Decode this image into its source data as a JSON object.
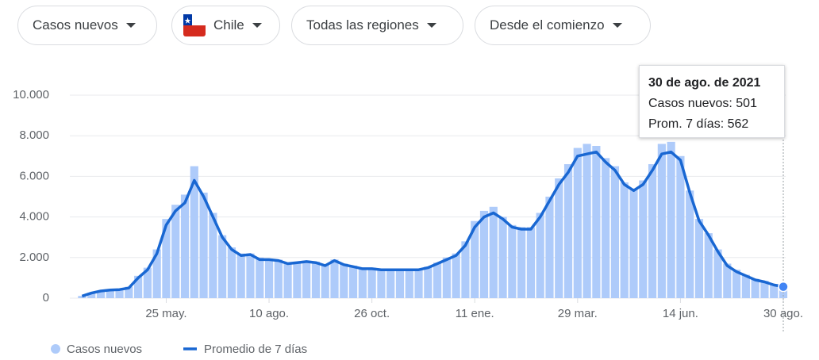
{
  "controls": {
    "metric": "Casos nuevos",
    "country": "Chile",
    "region": "Todas las regiones",
    "period": "Desde el comienzo"
  },
  "tooltip": {
    "title": "30 de ago. de 2021",
    "lines": [
      "Casos nuevos: 501",
      "Prom. 7 días: 562"
    ]
  },
  "chart_data": {
    "type": "bar-line",
    "x": [
      5,
      12,
      19,
      26,
      33,
      40,
      47,
      54,
      61,
      68,
      75,
      82,
      89,
      96,
      103,
      110,
      117,
      124,
      131,
      138,
      145,
      152,
      159,
      166,
      173,
      180,
      187,
      194,
      201,
      208,
      215,
      222,
      229,
      236,
      243,
      250,
      257,
      264,
      271,
      278,
      285,
      292,
      299,
      306,
      313,
      320,
      327,
      334,
      341,
      348,
      355,
      362,
      369,
      376,
      383,
      390,
      397,
      404,
      411,
      418,
      425,
      432,
      439,
      446,
      453,
      460,
      467,
      474,
      481,
      488,
      495,
      502,
      509,
      516,
      523,
      530
    ],
    "series": [
      {
        "name": "Casos nuevos",
        "color": "#aecbfa",
        "values": [
          110,
          260,
          370,
          420,
          450,
          560,
          1100,
          1500,
          2400,
          3900,
          4600,
          5100,
          6500,
          5200,
          4200,
          3100,
          2500,
          2200,
          2200,
          2000,
          1950,
          1900,
          1750,
          1800,
          1850,
          1800,
          1650,
          1900,
          1700,
          1600,
          1500,
          1500,
          1450,
          1450,
          1450,
          1450,
          1400,
          1550,
          1750,
          2000,
          2200,
          2800,
          3800,
          4300,
          4500,
          4000,
          3600,
          3500,
          3500,
          4200,
          5000,
          5900,
          6600,
          7400,
          7600,
          7500,
          6900,
          6500,
          5700,
          5400,
          5800,
          6600,
          7600,
          7700,
          7000,
          5300,
          3900,
          3200,
          2400,
          1700,
          1400,
          1150,
          950,
          850,
          700,
          501
        ]
      },
      {
        "name": "Promedio de 7 días",
        "color": "#1967d2",
        "values": [
          100,
          250,
          350,
          400,
          420,
          500,
          1000,
          1400,
          2200,
          3600,
          4300,
          4700,
          5800,
          5000,
          4000,
          3000,
          2400,
          2100,
          2150,
          1900,
          1900,
          1850,
          1700,
          1750,
          1800,
          1750,
          1600,
          1850,
          1650,
          1550,
          1450,
          1450,
          1400,
          1400,
          1400,
          1400,
          1400,
          1500,
          1700,
          1900,
          2100,
          2600,
          3500,
          4000,
          4200,
          3900,
          3500,
          3400,
          3400,
          4000,
          4800,
          5600,
          6200,
          7000,
          7100,
          7200,
          6700,
          6300,
          5600,
          5300,
          5600,
          6300,
          7100,
          7200,
          6800,
          5200,
          3800,
          3100,
          2300,
          1600,
          1300,
          1100,
          900,
          800,
          650,
          562
        ]
      }
    ],
    "xlim": [
      0,
      530
    ],
    "xticks": [
      {
        "value": 68,
        "label": "25 may."
      },
      {
        "value": 145,
        "label": "10 ago."
      },
      {
        "value": 222,
        "label": "26 oct."
      },
      {
        "value": 299,
        "label": "11 ene."
      },
      {
        "value": 376,
        "label": "29 mar."
      },
      {
        "value": 453,
        "label": "14 jun."
      },
      {
        "value": 530,
        "label": "30 ago."
      }
    ],
    "ylim": [
      0,
      10000
    ],
    "yticks": [
      0,
      {
        "value": 2000,
        "label": "2.000"
      },
      {
        "value": 4000,
        "label": "4.000"
      },
      {
        "value": 6000,
        "label": "6.000"
      },
      {
        "value": 8000,
        "label": "8.000"
      },
      {
        "value": 10000,
        "label": "10.000"
      }
    ],
    "grid": true
  }
}
